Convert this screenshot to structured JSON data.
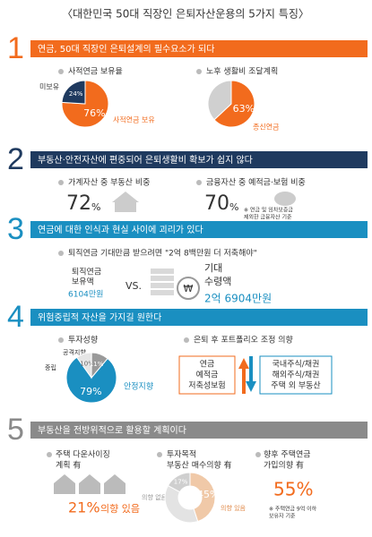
{
  "title": "〈대한민국 50대 직장인 은퇴자산운용의 5가지 특징〉",
  "s1": {
    "number": "1",
    "heading": "연금, 50대 직장인 은퇴설계의 필수요소가 되다",
    "a": {
      "label": "사적연금 보유율",
      "slices": [
        {
          "name": "사적연금 보유",
          "value": 76,
          "label": "76%"
        },
        {
          "name": "미보유",
          "value": 24,
          "label": "24%"
        }
      ]
    },
    "b": {
      "label": "노후 생활비 조달계획",
      "slices": [
        {
          "name": "종신연금",
          "value": 63,
          "label": "63%"
        },
        {
          "value": 37
        }
      ]
    }
  },
  "s2": {
    "number": "2",
    "heading": "부동산·안전자산에 편중되어 은퇴생활비 확보가 쉽지 않다",
    "a": {
      "label": "가계자산 중 부동산 비중",
      "value": "72",
      "unit": "%"
    },
    "b": {
      "label": "금융자산 중 예적금·보험 비중",
      "value": "70",
      "unit": "%",
      "note": [
        "※ 연금 및 임차보증금",
        "제외한 금융자산 기준"
      ]
    }
  },
  "s3": {
    "number": "3",
    "heading": "연금에 대한 인식과 현실 사이에 괴리가 있다",
    "subtitle": "퇴직연금 기대만큼 받으려면 \"2억 8백만원 더 저축해야\"",
    "left": {
      "label": [
        "퇴직연금",
        "보유액"
      ],
      "amount": "6104만원"
    },
    "vs": "VS.",
    "coin": "₩",
    "right": {
      "label": [
        "기대",
        "수령액"
      ],
      "amount": "2억 6904만원"
    }
  },
  "s4": {
    "number": "4",
    "heading": "위험중립적 자산을 가지길 원한다",
    "pie": {
      "label": "투자성향",
      "slices": [
        {
          "name": "안정지향",
          "value": 79,
          "label": "79%"
        },
        {
          "name": "중립",
          "value": 10,
          "label": "10%"
        },
        {
          "name": "공격지향",
          "value": 11,
          "label": "11%"
        }
      ]
    },
    "portfolio": {
      "label": "은퇴 후 포트폴리오 조정 의향",
      "up": [
        "연금",
        "예적금",
        "저축성보험"
      ],
      "down": [
        "국내주식/채권",
        "해외주식/채권",
        "주택 외 부동산"
      ]
    }
  },
  "s5": {
    "number": "5",
    "heading": "부동산을 전방위적으로 활용할 계획이다",
    "a": {
      "label": [
        "주택 다운사이징",
        "계획 有"
      ],
      "value": "21%",
      "text": "의향 있음"
    },
    "b": {
      "label": [
        "투자목적",
        "부동산 매수의향 有"
      ],
      "slices": [
        {
          "name": "의향 있음",
          "value": 45,
          "label": "45%"
        },
        {
          "value": 38
        },
        {
          "name": "의향 없음",
          "value": 17,
          "label": "17%"
        }
      ]
    },
    "c": {
      "label": [
        "향후 주택연금",
        "가입의향 有"
      ],
      "value": "55%",
      "note": [
        "※ 주택연금 9억 이하",
        "보유자 기준"
      ]
    }
  }
}
